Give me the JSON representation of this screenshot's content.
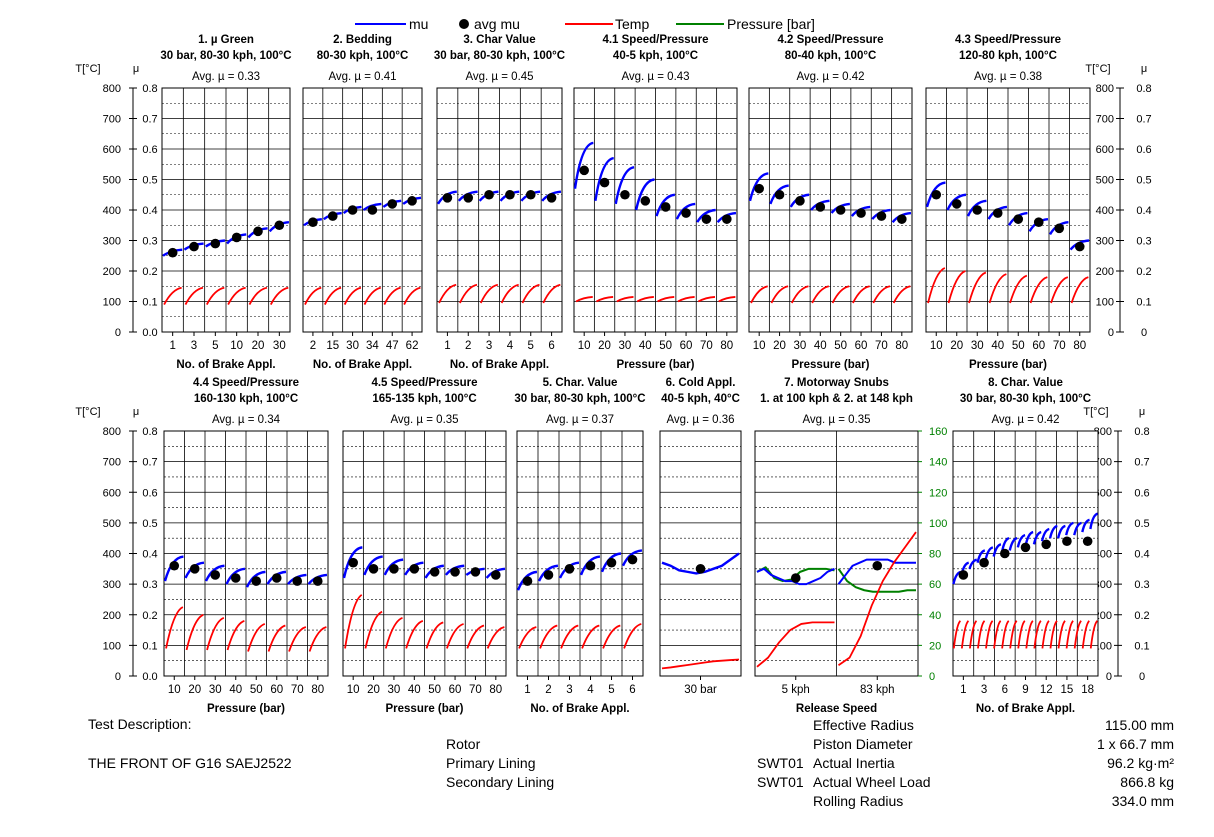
{
  "legend": {
    "mu": "mu",
    "avg_mu": "avg mu",
    "temp": "Temp",
    "pressure": "Pressure [bar]"
  },
  "colors": {
    "mu": "#0000ff",
    "avg": "#000000",
    "temp": "#ff0000",
    "pressure": "#008000",
    "grid": "#000000"
  },
  "axis_titles": {
    "temp": "T[°C]",
    "mu": "μ"
  },
  "info": {
    "test_description_label": "Test Description:",
    "test_description": "THE FRONT OF G16 SAEJ2522",
    "rotor_label": "Rotor",
    "primary_lining_label": "Primary Lining",
    "secondary_lining_label": "Secondary Lining",
    "swt1": "SWT01",
    "swt2": "SWT01",
    "params": [
      {
        "label": "Effective Radius",
        "value": "115.00 mm"
      },
      {
        "label": "Piston Diameter",
        "value": "1 x 66.7 mm"
      },
      {
        "label": "Actual Inertia",
        "value": "96.2 kg·m²"
      },
      {
        "label": "Actual Wheel Load",
        "value": "866.8 kg"
      },
      {
        "label": "Rolling Radius",
        "value": "334.0 mm"
      }
    ]
  },
  "chart_data": [
    {
      "type": "line",
      "title": "1. µ Green",
      "subtitle": "30 bar, 80-30 kph, 100°C",
      "avg_label": "Avg. µ = 0.33",
      "xlabel": "No. of Brake Appl.",
      "ticks": [
        "1",
        "3",
        "5",
        "10",
        "20",
        "30"
      ],
      "ylim_mu": [
        0,
        0.8
      ],
      "ylim_temp": [
        0,
        800
      ],
      "mu_segments": [
        [
          0.25,
          0.27
        ],
        [
          0.27,
          0.29
        ],
        [
          0.28,
          0.3
        ],
        [
          0.29,
          0.32
        ],
        [
          0.31,
          0.34
        ],
        [
          0.33,
          0.36
        ]
      ],
      "avg_mu": [
        0.26,
        0.28,
        0.29,
        0.31,
        0.33,
        0.35
      ],
      "temp_segments": [
        [
          90,
          145
        ],
        [
          90,
          145
        ],
        [
          90,
          145
        ],
        [
          90,
          145
        ],
        [
          90,
          145
        ],
        [
          90,
          145
        ]
      ]
    },
    {
      "type": "line",
      "title": "2. Bedding",
      "subtitle": "80-30 kph, 100°C",
      "avg_label": "Avg. µ = 0.41",
      "xlabel": "No. of Brake Appl.",
      "ticks": [
        "2",
        "15",
        "30",
        "34",
        "47",
        "62"
      ],
      "ylim_mu": [
        0,
        0.8
      ],
      "ylim_temp": [
        0,
        800
      ],
      "mu_segments": [
        [
          0.35,
          0.37
        ],
        [
          0.37,
          0.39
        ],
        [
          0.39,
          0.41
        ],
        [
          0.4,
          0.42
        ],
        [
          0.41,
          0.43
        ],
        [
          0.42,
          0.44
        ]
      ],
      "avg_mu": [
        0.36,
        0.38,
        0.4,
        0.4,
        0.42,
        0.43
      ],
      "temp_segments": [
        [
          90,
          145
        ],
        [
          90,
          145
        ],
        [
          90,
          145
        ],
        [
          90,
          145
        ],
        [
          90,
          145
        ],
        [
          90,
          145
        ]
      ]
    },
    {
      "type": "line",
      "title": "3. Char Value",
      "subtitle": "30 bar, 80-30 kph, 100°C",
      "avg_label": "Avg. µ = 0.45",
      "xlabel": "No. of Brake Appl.",
      "ticks": [
        "1",
        "2",
        "3",
        "4",
        "5",
        "6"
      ],
      "ylim_mu": [
        0,
        0.8
      ],
      "ylim_temp": [
        0,
        800
      ],
      "mu_segments": [
        [
          0.42,
          0.46
        ],
        [
          0.43,
          0.46
        ],
        [
          0.43,
          0.46
        ],
        [
          0.43,
          0.46
        ],
        [
          0.43,
          0.46
        ],
        [
          0.43,
          0.46
        ]
      ],
      "avg_mu": [
        0.44,
        0.44,
        0.45,
        0.45,
        0.45,
        0.44
      ],
      "temp_segments": [
        [
          95,
          155
        ],
        [
          95,
          155
        ],
        [
          95,
          155
        ],
        [
          95,
          155
        ],
        [
          95,
          155
        ],
        [
          95,
          155
        ]
      ]
    },
    {
      "type": "line",
      "title": "4.1 Speed/Pressure",
      "subtitle": "40-5 kph, 100°C",
      "avg_label": "Avg. µ = 0.43",
      "xlabel": "Pressure (bar)",
      "ticks": [
        "10",
        "20",
        "30",
        "40",
        "50",
        "60",
        "70",
        "80"
      ],
      "ylim_mu": [
        0,
        0.8
      ],
      "ylim_temp": [
        0,
        800
      ],
      "mu_segments": [
        [
          0.47,
          0.62
        ],
        [
          0.43,
          0.57
        ],
        [
          0.42,
          0.54
        ],
        [
          0.4,
          0.5
        ],
        [
          0.38,
          0.45
        ],
        [
          0.37,
          0.42
        ],
        [
          0.36,
          0.4
        ],
        [
          0.36,
          0.39
        ]
      ],
      "avg_mu": [
        0.53,
        0.49,
        0.45,
        0.43,
        0.41,
        0.39,
        0.37,
        0.37
      ],
      "temp_segments": [
        [
          100,
          115
        ],
        [
          100,
          115
        ],
        [
          100,
          115
        ],
        [
          100,
          115
        ],
        [
          100,
          115
        ],
        [
          100,
          115
        ],
        [
          100,
          115
        ],
        [
          100,
          115
        ]
      ]
    },
    {
      "type": "line",
      "title": "4.2 Speed/Pressure",
      "subtitle": "80-40 kph, 100°C",
      "avg_label": "Avg. µ = 0.42",
      "xlabel": "Pressure (bar)",
      "ticks": [
        "10",
        "20",
        "30",
        "40",
        "50",
        "60",
        "70",
        "80"
      ],
      "ylim_mu": [
        0,
        0.8
      ],
      "ylim_temp": [
        0,
        800
      ],
      "mu_segments": [
        [
          0.43,
          0.52
        ],
        [
          0.42,
          0.48
        ],
        [
          0.41,
          0.45
        ],
        [
          0.4,
          0.43
        ],
        [
          0.39,
          0.42
        ],
        [
          0.38,
          0.41
        ],
        [
          0.37,
          0.4
        ],
        [
          0.36,
          0.39
        ]
      ],
      "avg_mu": [
        0.47,
        0.45,
        0.43,
        0.41,
        0.4,
        0.39,
        0.38,
        0.37
      ],
      "temp_segments": [
        [
          95,
          150
        ],
        [
          95,
          150
        ],
        [
          95,
          150
        ],
        [
          95,
          150
        ],
        [
          95,
          150
        ],
        [
          95,
          150
        ],
        [
          95,
          150
        ],
        [
          95,
          150
        ]
      ]
    },
    {
      "type": "line",
      "title": "4.3 Speed/Pressure",
      "subtitle": "120-80 kph, 100°C",
      "avg_label": "Avg. µ = 0.38",
      "xlabel": "Pressure (bar)",
      "ticks": [
        "10",
        "20",
        "30",
        "40",
        "50",
        "60",
        "70",
        "80"
      ],
      "ylim_mu": [
        0,
        0.8
      ],
      "ylim_temp": [
        0,
        800
      ],
      "mu_segments": [
        [
          0.41,
          0.49
        ],
        [
          0.4,
          0.45
        ],
        [
          0.38,
          0.43
        ],
        [
          0.37,
          0.41
        ],
        [
          0.35,
          0.39
        ],
        [
          0.33,
          0.37
        ],
        [
          0.32,
          0.36
        ],
        [
          0.27,
          0.3
        ]
      ],
      "avg_mu": [
        0.45,
        0.42,
        0.4,
        0.39,
        0.37,
        0.36,
        0.34,
        0.28
      ],
      "temp_segments": [
        [
          95,
          210
        ],
        [
          95,
          200
        ],
        [
          95,
          195
        ],
        [
          95,
          190
        ],
        [
          95,
          185
        ],
        [
          95,
          180
        ],
        [
          95,
          180
        ],
        [
          95,
          180
        ]
      ]
    },
    {
      "type": "line",
      "title": "4.4 Speed/Pressure",
      "subtitle": "160-130 kph, 100°C",
      "avg_label": "Avg. µ = 0.34",
      "xlabel": "Pressure (bar)",
      "ticks": [
        "10",
        "20",
        "30",
        "40",
        "50",
        "60",
        "70",
        "80"
      ],
      "ylim_mu": [
        0,
        0.8
      ],
      "ylim_temp": [
        0,
        800
      ],
      "mu_segments": [
        [
          0.31,
          0.39
        ],
        [
          0.32,
          0.37
        ],
        [
          0.31,
          0.36
        ],
        [
          0.3,
          0.35
        ],
        [
          0.29,
          0.34
        ],
        [
          0.3,
          0.34
        ],
        [
          0.3,
          0.33
        ],
        [
          0.3,
          0.33
        ]
      ],
      "avg_mu": [
        0.36,
        0.35,
        0.33,
        0.32,
        0.31,
        0.32,
        0.31,
        0.31
      ],
      "temp_segments": [
        [
          90,
          225
        ],
        [
          85,
          200
        ],
        [
          85,
          190
        ],
        [
          85,
          180
        ],
        [
          80,
          170
        ],
        [
          80,
          165
        ],
        [
          80,
          160
        ],
        [
          80,
          160
        ]
      ]
    },
    {
      "type": "line",
      "title": "4.5 Speed/Pressure",
      "subtitle": "165-135 kph, 100°C",
      "avg_label": "Avg. µ = 0.35",
      "xlabel": "Pressure (bar)",
      "ticks": [
        "10",
        "20",
        "30",
        "40",
        "50",
        "60",
        "70",
        "80"
      ],
      "ylim_mu": [
        0,
        0.8
      ],
      "ylim_temp": [
        0,
        800
      ],
      "mu_segments": [
        [
          0.32,
          0.42
        ],
        [
          0.33,
          0.39
        ],
        [
          0.33,
          0.38
        ],
        [
          0.33,
          0.37
        ],
        [
          0.32,
          0.36
        ],
        [
          0.33,
          0.36
        ],
        [
          0.33,
          0.35
        ],
        [
          0.32,
          0.35
        ]
      ],
      "avg_mu": [
        0.37,
        0.35,
        0.35,
        0.35,
        0.34,
        0.34,
        0.34,
        0.33
      ],
      "temp_segments": [
        [
          90,
          265
        ],
        [
          90,
          210
        ],
        [
          90,
          190
        ],
        [
          90,
          180
        ],
        [
          90,
          175
        ],
        [
          90,
          170
        ],
        [
          90,
          165
        ],
        [
          90,
          160
        ]
      ]
    },
    {
      "type": "line",
      "title": "5. Char. Value",
      "subtitle": "30 bar, 80-30 kph, 100°C",
      "avg_label": "Avg. µ = 0.37",
      "xlabel": "No. of Brake Appl.",
      "ticks": [
        "1",
        "2",
        "3",
        "4",
        "5",
        "6"
      ],
      "ylim_mu": [
        0,
        0.8
      ],
      "ylim_temp": [
        0,
        800
      ],
      "mu_segments": [
        [
          0.28,
          0.34
        ],
        [
          0.31,
          0.36
        ],
        [
          0.32,
          0.37
        ],
        [
          0.33,
          0.39
        ],
        [
          0.34,
          0.4
        ],
        [
          0.36,
          0.41
        ]
      ],
      "avg_mu": [
        0.31,
        0.33,
        0.35,
        0.36,
        0.37,
        0.38
      ],
      "temp_segments": [
        [
          90,
          160
        ],
        [
          90,
          165
        ],
        [
          90,
          165
        ],
        [
          90,
          165
        ],
        [
          90,
          165
        ],
        [
          90,
          170
        ]
      ]
    },
    {
      "type": "line",
      "title": "6. Cold Appl.",
      "subtitle": "40-5 kph, 40°C",
      "avg_label": "Avg. µ = 0.36",
      "xlabel": "",
      "ticks": [
        "30 bar"
      ],
      "ylim_mu": [
        0,
        0.8
      ],
      "ylim_temp": [
        0,
        800
      ],
      "mu_points": [
        0.37,
        0.36,
        0.345,
        0.34,
        0.335,
        0.34,
        0.35,
        0.36,
        0.38,
        0.4
      ],
      "avg_mu": [
        0.35
      ],
      "temp_points": [
        25,
        28,
        32,
        36,
        40,
        44,
        48,
        50,
        52,
        54
      ]
    },
    {
      "type": "line",
      "title": "7. Motorway Snubs",
      "subtitle": "1. at 100 kph & 2. at 148 kph",
      "avg_label": "Avg. µ = 0.35",
      "xlabel": "Release Speed",
      "ticks": [
        "5 kph",
        "83 kph"
      ],
      "ylim_mu": [
        0,
        0.8
      ],
      "ylim_temp": [
        0,
        800
      ],
      "ylim_pressure": [
        0,
        160
      ],
      "mu_sections": [
        [
          0.34,
          0.35,
          0.33,
          0.32,
          0.31,
          0.31,
          0.3,
          0.3,
          0.31,
          0.32,
          0.34,
          0.35
        ],
        [
          0.3,
          0.33,
          0.36,
          0.37,
          0.38,
          0.38,
          0.38,
          0.38,
          0.37,
          0.37,
          0.37,
          0.37
        ]
      ],
      "avg_mu": [
        0.32,
        0.36
      ],
      "temp_sections": [
        [
          30,
          60,
          110,
          150,
          170,
          175,
          175,
          175
        ],
        [
          35,
          60,
          130,
          230,
          310,
          370,
          420,
          470
        ]
      ],
      "pressure_sections": [
        [
          68,
          71,
          64,
          62,
          63,
          68,
          70,
          70,
          70,
          69
        ],
        [
          70,
          62,
          58,
          56,
          55,
          55,
          55,
          55,
          56,
          56
        ]
      ]
    },
    {
      "type": "line",
      "title": "8. Char. Value",
      "subtitle": "30 bar, 80-30 kph, 100°C",
      "avg_label": "Avg. µ = 0.42",
      "xlabel": "No. of Brake Appl.",
      "ticks": [
        "1",
        "3",
        "6",
        "9",
        "12",
        "15",
        "18"
      ],
      "ylim_mu": [
        0,
        0.8
      ],
      "ylim_temp": [
        0,
        800
      ],
      "mu_segments": [
        [
          0.3,
          0.34
        ],
        [
          0.33,
          0.37
        ],
        [
          0.35,
          0.38
        ],
        [
          0.37,
          0.41
        ],
        [
          0.38,
          0.42
        ],
        [
          0.39,
          0.43
        ],
        [
          0.4,
          0.45
        ],
        [
          0.41,
          0.45
        ],
        [
          0.42,
          0.46
        ],
        [
          0.43,
          0.47
        ],
        [
          0.43,
          0.47
        ],
        [
          0.44,
          0.48
        ],
        [
          0.45,
          0.49
        ],
        [
          0.45,
          0.49
        ],
        [
          0.46,
          0.5
        ],
        [
          0.46,
          0.5
        ],
        [
          0.47,
          0.51
        ],
        [
          0.48,
          0.53
        ]
      ],
      "avg_mu": [
        0.33,
        0.37,
        0.4,
        0.42,
        0.43,
        0.44,
        0.44
      ],
      "temp_segments": [
        [
          90,
          180
        ],
        [
          90,
          180
        ],
        [
          90,
          180
        ],
        [
          90,
          180
        ],
        [
          90,
          180
        ],
        [
          90,
          180
        ],
        [
          90,
          180
        ],
        [
          90,
          180
        ],
        [
          90,
          180
        ],
        [
          90,
          180
        ],
        [
          90,
          180
        ],
        [
          90,
          180
        ],
        [
          90,
          180
        ],
        [
          90,
          180
        ],
        [
          90,
          180
        ],
        [
          90,
          180
        ],
        [
          90,
          180
        ],
        [
          90,
          180
        ]
      ]
    }
  ]
}
